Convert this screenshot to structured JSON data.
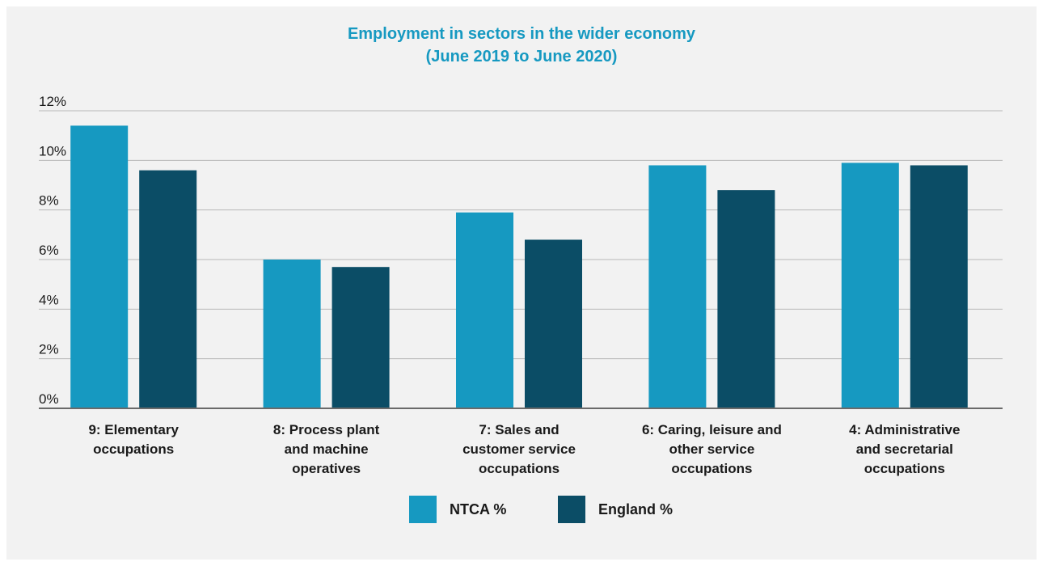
{
  "chart_data": {
    "type": "bar",
    "title": "Employment in sectors in the wider economy",
    "subtitle": "(June 2019 to June 2020)",
    "categories": [
      [
        "9: Elementary",
        "occupations"
      ],
      [
        "8: Process plant",
        "and machine",
        "operatives"
      ],
      [
        "7: Sales and",
        "customer service",
        "occupations"
      ],
      [
        "6: Caring, leisure and",
        "other service",
        "occupations"
      ],
      [
        "4: Administrative",
        "and secretarial",
        "occupations"
      ]
    ],
    "series": [
      {
        "name": "NTCA %",
        "color": "#1699c1",
        "values": [
          11.4,
          6.0,
          7.9,
          9.8,
          9.9
        ]
      },
      {
        "name": "England %",
        "color": "#0b4d66",
        "values": [
          9.6,
          5.7,
          6.8,
          8.8,
          9.8
        ]
      }
    ],
    "yticks": [
      "0%",
      "2%",
      "4%",
      "6%",
      "8%",
      "10%",
      "12%"
    ],
    "ylim": [
      0,
      12
    ],
    "grid": true,
    "legend_position": "bottom-center"
  }
}
